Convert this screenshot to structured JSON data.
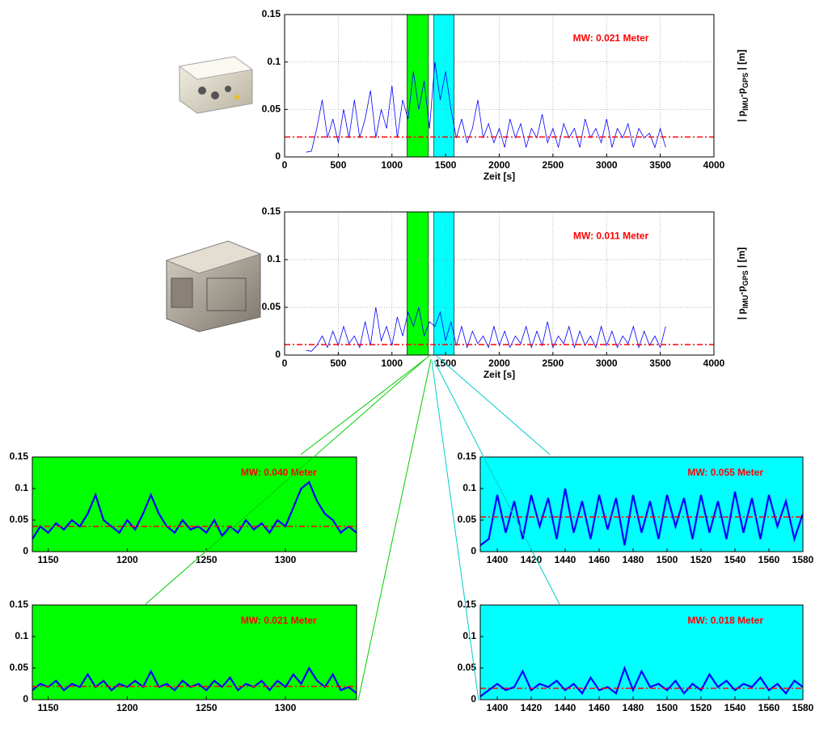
{
  "chart_data": [
    {
      "type": "line",
      "xlabel": "Zeit [s]",
      "ylabel_parts": [
        "| p",
        "IMU",
        "-p",
        "GPS",
        " |  [m]"
      ],
      "annotation": "MW: 0.021 Meter",
      "mean": 0.021,
      "mean_color": "#ff0000",
      "grid": true,
      "xlim": [
        0,
        4000
      ],
      "ylim": [
        0,
        0.15
      ],
      "xticks": [
        0,
        500,
        1000,
        1500,
        2000,
        2500,
        3000,
        3500,
        4000
      ],
      "yticks": [
        0,
        0.05,
        0.1,
        0.15
      ],
      "bands": [
        {
          "from": 1140,
          "to": 1340,
          "color": "#00ff00"
        },
        {
          "from": 1390,
          "to": 1580,
          "color": "#00ffff"
        }
      ],
      "series": [
        {
          "color": "#0000ff",
          "x": [
            200,
            250,
            300,
            350,
            400,
            450,
            500,
            550,
            600,
            650,
            700,
            750,
            800,
            850,
            900,
            950,
            1000,
            1050,
            1100,
            1150,
            1200,
            1250,
            1300,
            1350,
            1400,
            1450,
            1500,
            1550,
            1600,
            1650,
            1700,
            1750,
            1800,
            1850,
            1900,
            1950,
            2000,
            2050,
            2100,
            2150,
            2200,
            2250,
            2300,
            2350,
            2400,
            2450,
            2500,
            2550,
            2600,
            2650,
            2700,
            2750,
            2800,
            2850,
            2900,
            2950,
            3000,
            3050,
            3100,
            3150,
            3200,
            3250,
            3300,
            3350,
            3400,
            3450,
            3500,
            3550
          ],
          "values": [
            0.005,
            0.006,
            0.03,
            0.06,
            0.02,
            0.04,
            0.015,
            0.05,
            0.02,
            0.06,
            0.02,
            0.04,
            0.07,
            0.02,
            0.05,
            0.03,
            0.075,
            0.02,
            0.06,
            0.04,
            0.09,
            0.05,
            0.08,
            0.03,
            0.1,
            0.06,
            0.09,
            0.05,
            0.02,
            0.04,
            0.015,
            0.03,
            0.06,
            0.02,
            0.035,
            0.015,
            0.03,
            0.01,
            0.04,
            0.02,
            0.035,
            0.01,
            0.03,
            0.02,
            0.045,
            0.015,
            0.03,
            0.01,
            0.035,
            0.02,
            0.03,
            0.01,
            0.04,
            0.02,
            0.03,
            0.015,
            0.04,
            0.01,
            0.03,
            0.02,
            0.035,
            0.01,
            0.03,
            0.02,
            0.025,
            0.01,
            0.03,
            0.01
          ]
        }
      ]
    },
    {
      "type": "line",
      "xlabel": "Zeit [s]",
      "ylabel_parts": [
        "| p",
        "IMU",
        "-p",
        "GPS",
        " |  [m]"
      ],
      "annotation": "MW: 0.011 Meter",
      "mean": 0.011,
      "mean_color": "#ff0000",
      "grid": true,
      "xlim": [
        0,
        4000
      ],
      "ylim": [
        0,
        0.15
      ],
      "xticks": [
        0,
        500,
        1000,
        1500,
        2000,
        2500,
        3000,
        3500,
        4000
      ],
      "yticks": [
        0,
        0.05,
        0.1,
        0.15
      ],
      "bands": [
        {
          "from": 1140,
          "to": 1340,
          "color": "#00ff00"
        },
        {
          "from": 1390,
          "to": 1580,
          "color": "#00ffff"
        }
      ],
      "series": [
        {
          "color": "#0000ff",
          "x": [
            200,
            250,
            300,
            350,
            400,
            450,
            500,
            550,
            600,
            650,
            700,
            750,
            800,
            850,
            900,
            950,
            1000,
            1050,
            1100,
            1150,
            1200,
            1250,
            1300,
            1350,
            1400,
            1450,
            1500,
            1550,
            1600,
            1650,
            1700,
            1750,
            1800,
            1850,
            1900,
            1950,
            2000,
            2050,
            2100,
            2150,
            2200,
            2250,
            2300,
            2350,
            2400,
            2450,
            2500,
            2550,
            2600,
            2650,
            2700,
            2750,
            2800,
            2850,
            2900,
            2950,
            3000,
            3050,
            3100,
            3150,
            3200,
            3250,
            3300,
            3350,
            3400,
            3450,
            3500,
            3550
          ],
          "values": [
            0.005,
            0.004,
            0.01,
            0.02,
            0.008,
            0.025,
            0.01,
            0.03,
            0.012,
            0.02,
            0.008,
            0.035,
            0.01,
            0.05,
            0.015,
            0.03,
            0.01,
            0.04,
            0.02,
            0.045,
            0.03,
            0.05,
            0.02,
            0.035,
            0.03,
            0.045,
            0.015,
            0.035,
            0.01,
            0.03,
            0.008,
            0.025,
            0.012,
            0.02,
            0.008,
            0.03,
            0.01,
            0.025,
            0.008,
            0.02,
            0.012,
            0.03,
            0.008,
            0.025,
            0.01,
            0.035,
            0.008,
            0.02,
            0.012,
            0.03,
            0.008,
            0.025,
            0.01,
            0.02,
            0.008,
            0.03,
            0.01,
            0.025,
            0.008,
            0.02,
            0.012,
            0.03,
            0.008,
            0.025,
            0.01,
            0.02,
            0.008,
            0.03
          ]
        }
      ]
    },
    {
      "type": "line",
      "annotation": "MW: 0.040 Meter",
      "mean": 0.04,
      "mean_color": "#ff0000",
      "background": "#00ff00",
      "xlim": [
        1140,
        1345
      ],
      "ylim": [
        0,
        0.15
      ],
      "xticks": [
        1150,
        1200,
        1250,
        1300
      ],
      "yticks": [
        0,
        0.05,
        0.1,
        0.15
      ],
      "series": [
        {
          "color": "#0000ff",
          "x": [
            1140,
            1145,
            1150,
            1155,
            1160,
            1165,
            1170,
            1175,
            1180,
            1185,
            1190,
            1195,
            1200,
            1205,
            1210,
            1215,
            1220,
            1225,
            1230,
            1235,
            1240,
            1245,
            1250,
            1255,
            1260,
            1265,
            1270,
            1275,
            1280,
            1285,
            1290,
            1295,
            1300,
            1305,
            1310,
            1315,
            1320,
            1325,
            1330,
            1335,
            1340,
            1345
          ],
          "values": [
            0.02,
            0.04,
            0.03,
            0.045,
            0.035,
            0.05,
            0.04,
            0.06,
            0.09,
            0.05,
            0.04,
            0.03,
            0.05,
            0.035,
            0.06,
            0.09,
            0.06,
            0.04,
            0.03,
            0.05,
            0.035,
            0.04,
            0.03,
            0.05,
            0.025,
            0.04,
            0.03,
            0.05,
            0.035,
            0.045,
            0.03,
            0.05,
            0.04,
            0.07,
            0.1,
            0.11,
            0.08,
            0.06,
            0.05,
            0.03,
            0.04,
            0.03
          ]
        }
      ]
    },
    {
      "type": "line",
      "annotation": "MW: 0.021 Meter",
      "mean": 0.021,
      "mean_color": "#ff0000",
      "background": "#00ff00",
      "xlim": [
        1140,
        1345
      ],
      "ylim": [
        0,
        0.15
      ],
      "xticks": [
        1150,
        1200,
        1250,
        1300
      ],
      "yticks": [
        0,
        0.05,
        0.1,
        0.15
      ],
      "series": [
        {
          "color": "#0000ff",
          "x": [
            1140,
            1145,
            1150,
            1155,
            1160,
            1165,
            1170,
            1175,
            1180,
            1185,
            1190,
            1195,
            1200,
            1205,
            1210,
            1215,
            1220,
            1225,
            1230,
            1235,
            1240,
            1245,
            1250,
            1255,
            1260,
            1265,
            1270,
            1275,
            1280,
            1285,
            1290,
            1295,
            1300,
            1305,
            1310,
            1315,
            1320,
            1325,
            1330,
            1335,
            1340,
            1345
          ],
          "values": [
            0.015,
            0.025,
            0.02,
            0.03,
            0.015,
            0.025,
            0.02,
            0.04,
            0.02,
            0.03,
            0.015,
            0.025,
            0.02,
            0.03,
            0.02,
            0.045,
            0.02,
            0.025,
            0.015,
            0.03,
            0.02,
            0.025,
            0.015,
            0.03,
            0.02,
            0.035,
            0.015,
            0.025,
            0.02,
            0.03,
            0.015,
            0.03,
            0.02,
            0.04,
            0.025,
            0.05,
            0.03,
            0.02,
            0.04,
            0.015,
            0.02,
            0.01
          ]
        }
      ]
    },
    {
      "type": "line",
      "annotation": "MW: 0.055 Meter",
      "mean": 0.055,
      "mean_color": "#ff0000",
      "background": "#00ffff",
      "xlim": [
        1390,
        1580
      ],
      "ylim": [
        0,
        0.15
      ],
      "xticks": [
        1400,
        1420,
        1440,
        1460,
        1480,
        1500,
        1520,
        1540,
        1560,
        1580
      ],
      "yticks": [
        0,
        0.05,
        0.1,
        0.15
      ],
      "series": [
        {
          "color": "#0000ff",
          "x": [
            1390,
            1395,
            1400,
            1405,
            1410,
            1415,
            1420,
            1425,
            1430,
            1435,
            1440,
            1445,
            1450,
            1455,
            1460,
            1465,
            1470,
            1475,
            1480,
            1485,
            1490,
            1495,
            1500,
            1505,
            1510,
            1515,
            1520,
            1525,
            1530,
            1535,
            1540,
            1545,
            1550,
            1555,
            1560,
            1565,
            1570,
            1575,
            1580
          ],
          "values": [
            0.01,
            0.02,
            0.09,
            0.03,
            0.08,
            0.02,
            0.09,
            0.04,
            0.085,
            0.02,
            0.1,
            0.03,
            0.08,
            0.02,
            0.09,
            0.035,
            0.085,
            0.01,
            0.09,
            0.03,
            0.08,
            0.02,
            0.09,
            0.04,
            0.085,
            0.02,
            0.09,
            0.03,
            0.08,
            0.02,
            0.095,
            0.03,
            0.085,
            0.02,
            0.09,
            0.04,
            0.08,
            0.02,
            0.06
          ]
        }
      ]
    },
    {
      "type": "line",
      "annotation": "MW: 0.018 Meter",
      "mean": 0.018,
      "mean_color": "#ff0000",
      "background": "#00ffff",
      "xlim": [
        1390,
        1580
      ],
      "ylim": [
        0,
        0.15
      ],
      "xticks": [
        1400,
        1420,
        1440,
        1460,
        1480,
        1500,
        1520,
        1540,
        1560,
        1580
      ],
      "yticks": [
        0,
        0.05,
        0.1,
        0.15
      ],
      "series": [
        {
          "color": "#0000ff",
          "x": [
            1390,
            1395,
            1400,
            1405,
            1410,
            1415,
            1420,
            1425,
            1430,
            1435,
            1440,
            1445,
            1450,
            1455,
            1460,
            1465,
            1470,
            1475,
            1480,
            1485,
            1490,
            1495,
            1500,
            1505,
            1510,
            1515,
            1520,
            1525,
            1530,
            1535,
            1540,
            1545,
            1550,
            1555,
            1560,
            1565,
            1570,
            1575,
            1580
          ],
          "values": [
            0.005,
            0.015,
            0.025,
            0.015,
            0.02,
            0.045,
            0.015,
            0.025,
            0.02,
            0.03,
            0.015,
            0.025,
            0.01,
            0.035,
            0.015,
            0.02,
            0.01,
            0.05,
            0.015,
            0.045,
            0.02,
            0.025,
            0.015,
            0.03,
            0.01,
            0.025,
            0.015,
            0.04,
            0.02,
            0.03,
            0.015,
            0.025,
            0.02,
            0.035,
            0.015,
            0.025,
            0.01,
            0.03,
            0.02
          ]
        }
      ]
    }
  ]
}
